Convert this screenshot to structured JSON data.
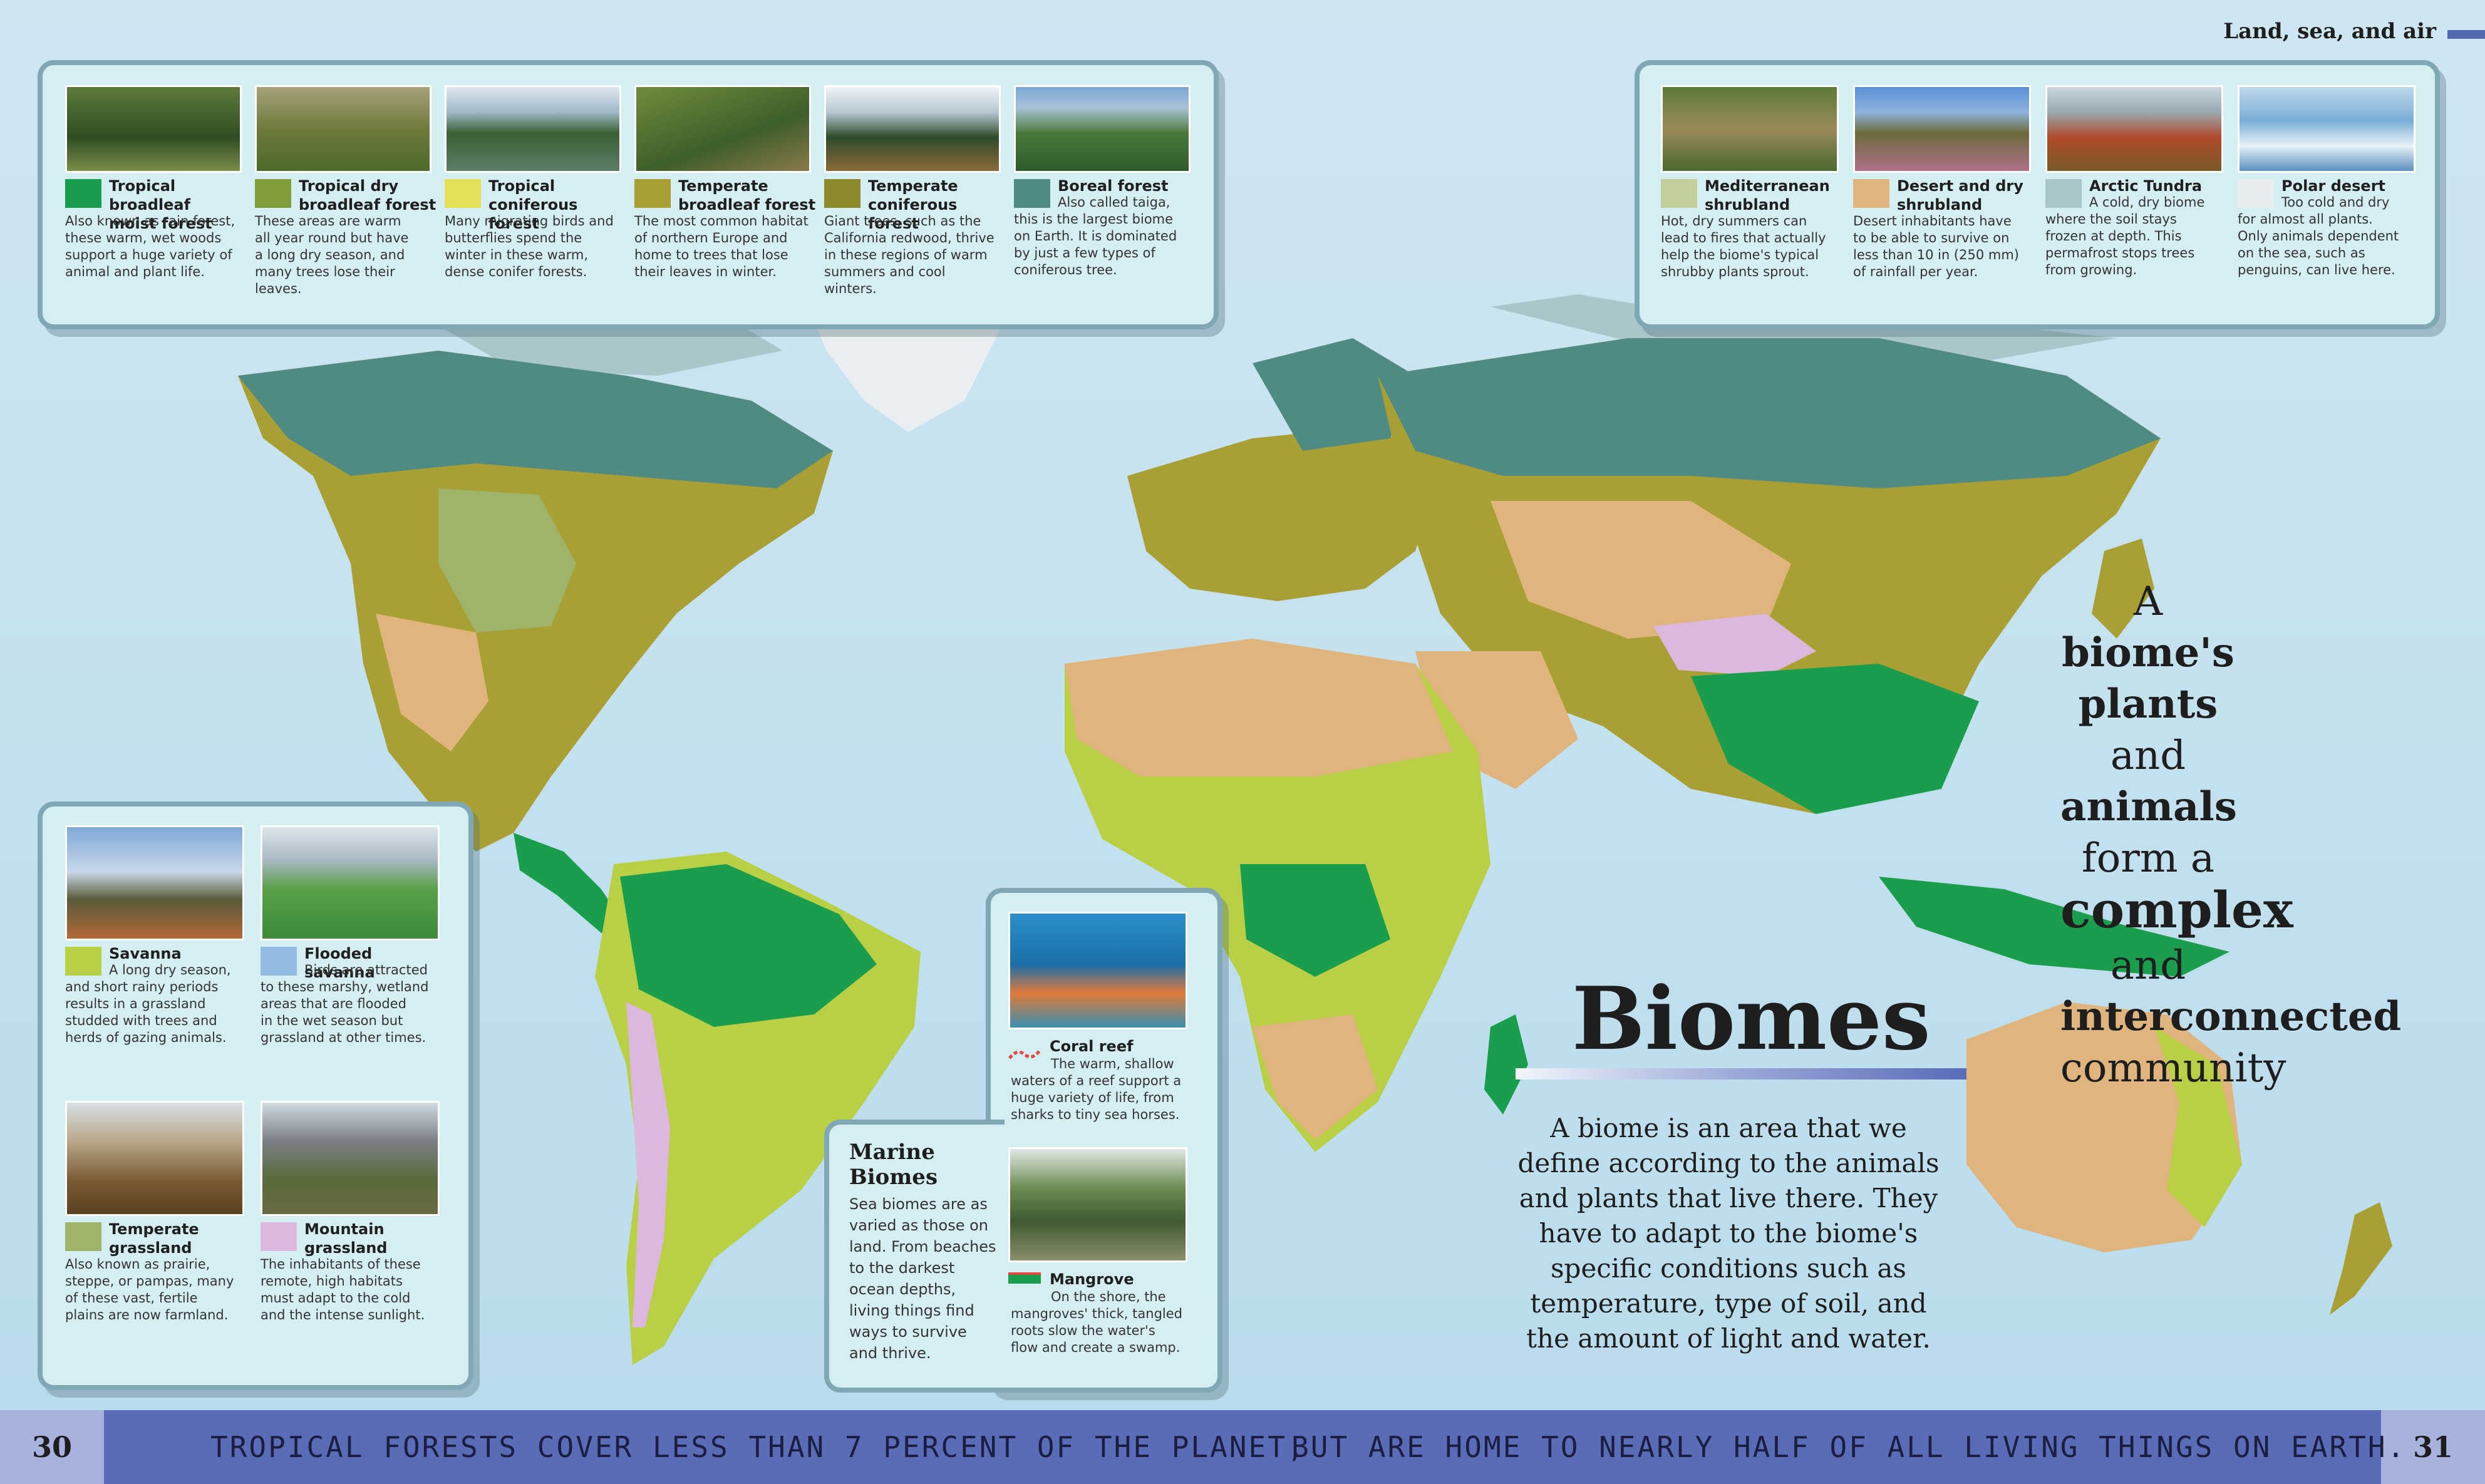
{
  "header": {
    "section": "Land, sea, and air",
    "accent": "#5468b0"
  },
  "biomes_top_left": [
    {
      "title_line1": "Tropical broadleaf",
      "title_line2": "moist forest",
      "desc": [
        "Also known as rain forest,",
        "these warm, wet woods",
        "support a huge variety of",
        "animal and plant life."
      ],
      "color": "#1a9e4e",
      "photo_name": "rainforest-photo"
    },
    {
      "title_line1": "Tropical dry",
      "title_line2": "broadleaf forest",
      "desc": [
        "These areas are warm",
        "all year round but have",
        "a long dry season, and",
        "many trees lose their",
        "leaves."
      ],
      "color": "#7f9e3a",
      "photo_name": "dry-forest-photo"
    },
    {
      "title_line1": "Tropical",
      "title_line2": "coniferous forest",
      "desc": [
        "Many migrating birds and",
        "butterflies spend the",
        "winter in these warm,",
        "dense conifer forests."
      ],
      "color": "#e4e05a",
      "photo_name": "tropical-conifer-photo"
    },
    {
      "title_line1": "Temperate",
      "title_line2": "broadleaf forest",
      "desc": [
        "The most common habitat",
        "of northern Europe and",
        "home to trees that lose",
        "their leaves in winter."
      ],
      "color": "#a8a034",
      "photo_name": "temperate-broadleaf-photo"
    },
    {
      "title_line1": "Temperate",
      "title_line2": "coniferous forest",
      "desc": [
        "Giant trees, such as the",
        "California redwood, thrive",
        "in these regions of warm",
        "summers and cool",
        "winters."
      ],
      "color": "#8c8a2c",
      "photo_name": "temperate-conifer-photo"
    },
    {
      "title_line1": "Boreal forest",
      "title_line2": "",
      "desc": [
        "Also called taiga,",
        "this is the largest biome",
        "on Earth. It is dominated",
        "by just a few types of",
        "coniferous tree."
      ],
      "color": "#4f8b82",
      "photo_name": "boreal-photo"
    }
  ],
  "biomes_top_right": [
    {
      "title_line1": "Mediterranean",
      "title_line2": "shrubland",
      "desc": [
        "Hot, dry summers can",
        "lead to fires that actually",
        "help the biome's typical",
        "shrubby plants sprout."
      ],
      "color": "#c2cf9c",
      "photo_name": "mediterranean-photo"
    },
    {
      "title_line1": "Desert and dry",
      "title_line2": "shrubland",
      "desc": [
        "Desert inhabitants have",
        "to be able to survive on",
        "less than 10 in (250 mm)",
        "of rainfall per year."
      ],
      "color": "#dfb47d",
      "photo_name": "desert-photo"
    },
    {
      "title_line1": "Arctic Tundra",
      "title_line2": "",
      "desc": [
        "A cold, dry biome",
        "where the soil stays",
        "frozen at depth. This",
        "permafrost stops trees",
        "from growing."
      ],
      "color": "#a9c7cb",
      "photo_name": "tundra-photo"
    },
    {
      "title_line1": "Polar desert",
      "title_line2": "",
      "desc": [
        "Too cold and dry",
        "for almost all plants.",
        "Only animals dependent",
        "on the sea, such as",
        "penguins, can live here."
      ],
      "color": "#e8eef0",
      "photo_name": "polar-photo"
    }
  ],
  "biomes_left": [
    {
      "title_line1": "Savanna",
      "title_line2": "",
      "desc": [
        "A long dry season,",
        "and short rainy periods",
        "results in a grassland",
        "studded with trees and",
        "herds of gazing animals."
      ],
      "color": "#b9cf46",
      "photo_name": "savanna-photo"
    },
    {
      "title_line1": "Flooded savanna",
      "title_line2": "",
      "desc": [
        "Birds are attracted",
        "to these marshy, wetland",
        "areas that are flooded",
        "in the wet season but",
        "grassland at other times."
      ],
      "color": "#93bde0",
      "photo_name": "flooded-savanna-photo"
    },
    {
      "title_line1": "Temperate",
      "title_line2": "grassland",
      "desc": [
        "Also known as prairie,",
        "steppe, or pampas, many",
        "of these vast, fertile",
        "plains are now farmland."
      ],
      "color": "#9fb46b",
      "photo_name": "temperate-grassland-photo"
    },
    {
      "title_line1": "Mountain",
      "title_line2": "grassland",
      "desc": [
        "The inhabitants of these",
        "remote, high habitats",
        "must adapt to the cold",
        "and the intense sunlight."
      ],
      "color": "#dcb8dc",
      "photo_name": "mountain-grassland-photo"
    }
  ],
  "marine": {
    "title_line1": "Marine",
    "title_line2": "Biomes",
    "desc": [
      "Sea biomes are as",
      "varied as those on",
      "land. From beaches",
      "to the darkest",
      "ocean depths,",
      "living things find",
      "ways to survive",
      "and thrive."
    ],
    "coral": {
      "title": "Coral reef",
      "desc": [
        "The warm, shallow",
        "waters of a reef support a",
        "huge variety of life, from",
        "sharks to tiny sea horses."
      ],
      "color": "#e2483f"
    },
    "mangrove": {
      "title": "Mangrove",
      "desc": [
        "On the shore, the",
        "mangroves' thick, tangled",
        "roots slow the water's",
        "flow and create a swamp."
      ],
      "color": "#1a9e4e"
    }
  },
  "quote": {
    "l1a": "A ",
    "l1b": "biome's",
    "l2a": "plants",
    "l2b": " and",
    "l3a": "animals",
    "l3b": " form a",
    "l4a": "complex",
    "l4b": " and",
    "l5": "interconnected",
    "l6": "community"
  },
  "title": "Biomes",
  "intro": [
    "A biome is an area that we",
    "define according to the animals",
    "and plants that live there. They",
    "have to adapt to the biome's",
    "specific conditions such as",
    "temperature, type of soil, and",
    "the amount of light and water."
  ],
  "footer": {
    "page_left": "30",
    "page_right": "31",
    "fact_left": "TROPICAL FORESTS COVER LESS THAN 7 PERCENT OF THE PLANET,",
    "fact_right": "BUT ARE HOME TO NEARLY HALF OF ALL LIVING THINGS ON EARTH."
  }
}
